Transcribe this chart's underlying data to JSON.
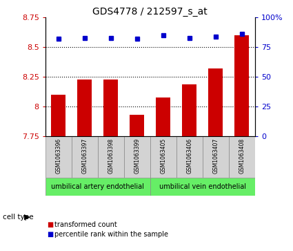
{
  "title": "GDS4778 / 212597_s_at",
  "samples": [
    "GSM1063396",
    "GSM1063397",
    "GSM1063398",
    "GSM1063399",
    "GSM1063405",
    "GSM1063406",
    "GSM1063407",
    "GSM1063408"
  ],
  "transformed_count": [
    8.1,
    8.23,
    8.23,
    7.93,
    8.08,
    8.19,
    8.32,
    8.6
  ],
  "percentile_rank": [
    82,
    83,
    83,
    82,
    85,
    83,
    84,
    86
  ],
  "ylim_left": [
    7.75,
    8.75
  ],
  "ylim_right": [
    0,
    100
  ],
  "yticks_left": [
    7.75,
    8.0,
    8.25,
    8.5,
    8.75
  ],
  "ytick_labels_left": [
    "7.75",
    "8",
    "8.25",
    "8.5",
    "8.75"
  ],
  "yticks_right": [
    0,
    25,
    50,
    75,
    100
  ],
  "ytick_labels_right": [
    "0",
    "25",
    "50",
    "75",
    "100%"
  ],
  "bar_color": "#cc0000",
  "dot_color": "#0000cc",
  "background_color": "#ffffff",
  "gray_box_color": "#d3d3d3",
  "green_color": "#66ee66",
  "cell_type_groups": [
    {
      "label": "umbilical artery endothelial",
      "count": 4
    },
    {
      "label": "umbilical vein endothelial",
      "count": 4
    }
  ],
  "cell_type_label": "cell type",
  "legend_items": [
    {
      "label": "transformed count",
      "color": "#cc0000"
    },
    {
      "label": "percentile rank within the sample",
      "color": "#0000cc"
    }
  ],
  "tick_label_color_left": "#cc0000",
  "tick_label_color_right": "#0000cc",
  "hgrid_values": [
    8.0,
    8.25,
    8.5
  ],
  "bar_width": 0.55
}
